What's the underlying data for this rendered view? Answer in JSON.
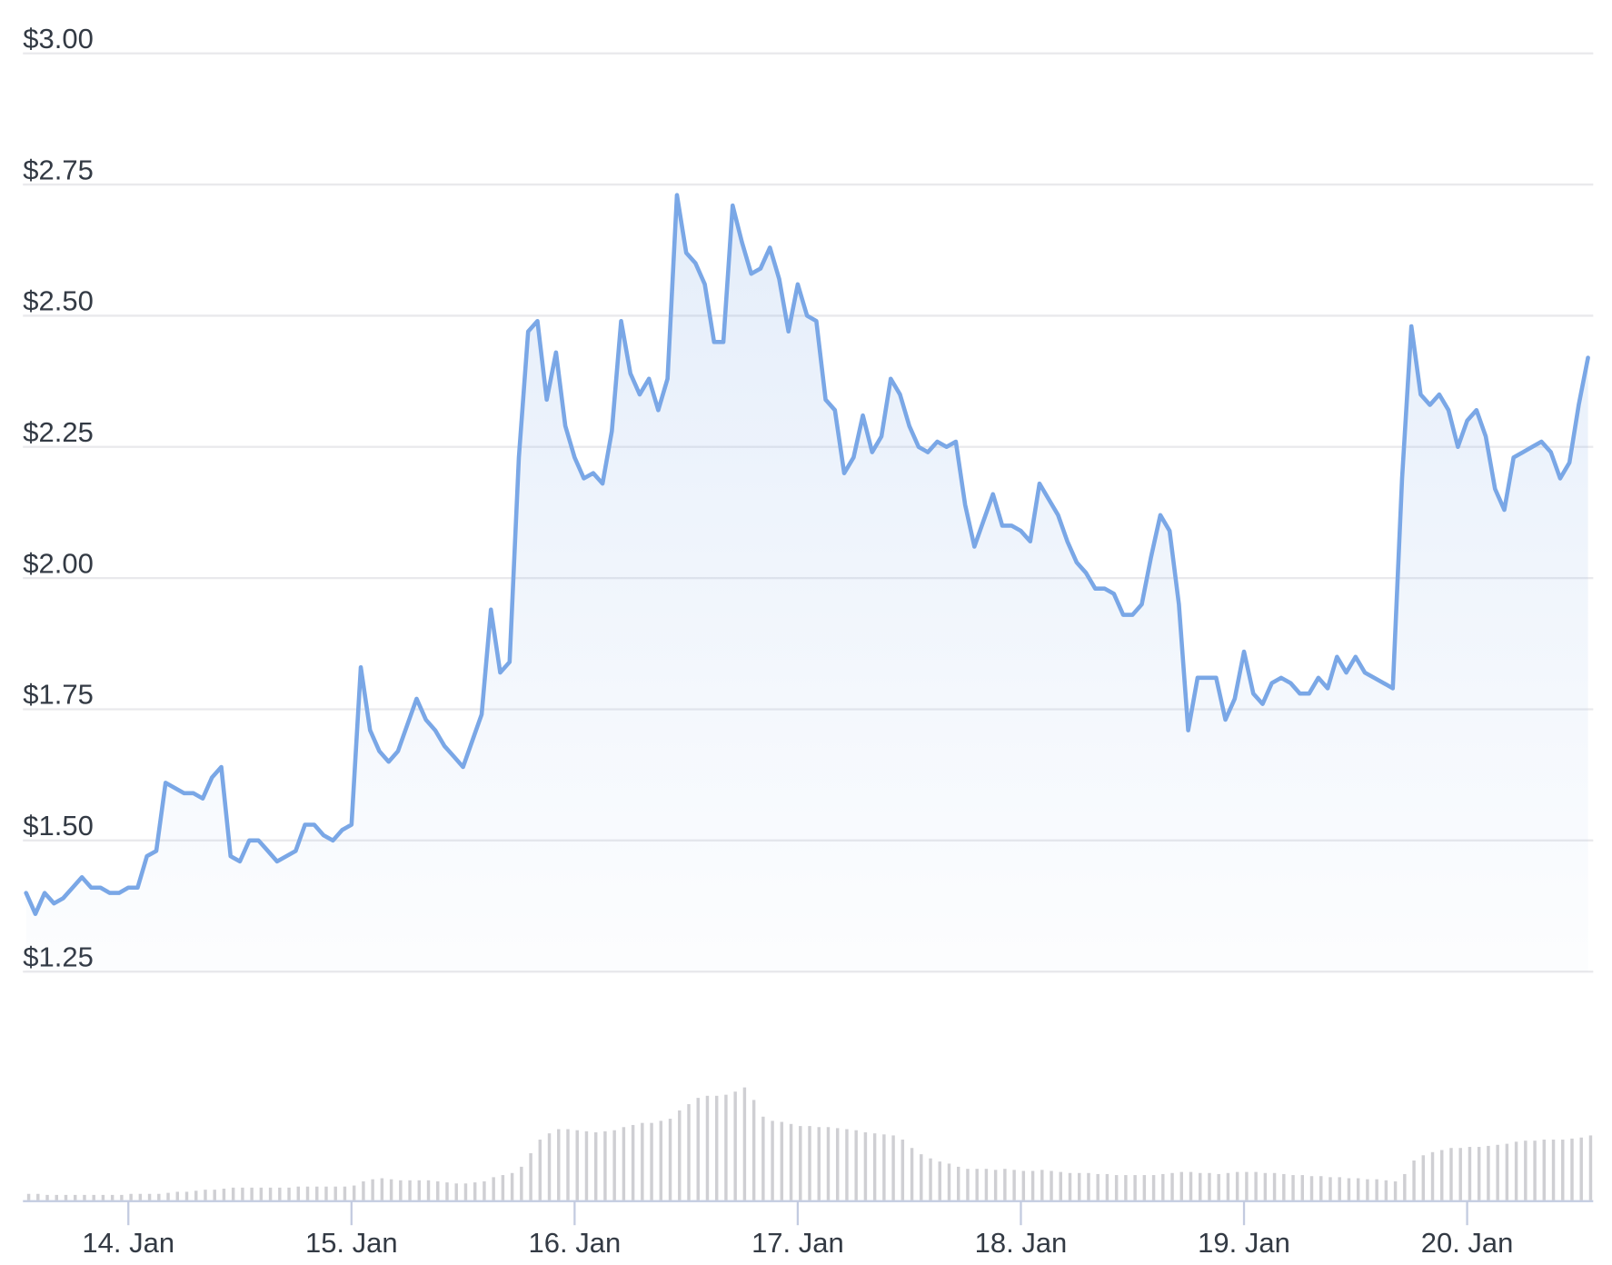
{
  "chart_data": {
    "type": "line",
    "color": "#7aa7e6",
    "ylim": [
      1.25,
      3.0
    ],
    "yticks": [
      {
        "value": 1.25,
        "label": "$1.25"
      },
      {
        "value": 1.5,
        "label": "$1.50"
      },
      {
        "value": 1.75,
        "label": "$1.75"
      },
      {
        "value": 2.0,
        "label": "$2.00"
      },
      {
        "value": 2.25,
        "label": "$2.25"
      },
      {
        "value": 2.5,
        "label": "$2.50"
      },
      {
        "value": 2.75,
        "label": "$2.75"
      },
      {
        "value": 3.0,
        "label": "$3.00"
      }
    ],
    "grid": true,
    "categories": [
      null,
      null,
      null,
      null,
      null,
      null,
      null,
      null,
      null,
      null,
      null,
      "14. Jan",
      null,
      null,
      null,
      null,
      null,
      null,
      null,
      null,
      null,
      null,
      null,
      null,
      null,
      null,
      null,
      null,
      null,
      null,
      null,
      null,
      null,
      null,
      null,
      "15. Jan",
      null,
      null,
      null,
      null,
      null,
      null,
      null,
      null,
      null,
      null,
      null,
      null,
      null,
      null,
      null,
      null,
      null,
      null,
      null,
      null,
      null,
      null,
      null,
      "16. Jan",
      null,
      null,
      null,
      null,
      null,
      null,
      null,
      null,
      null,
      null,
      null,
      null,
      null,
      null,
      null,
      null,
      null,
      null,
      null,
      null,
      null,
      null,
      null,
      "17. Jan",
      null,
      null,
      null,
      null,
      null,
      null,
      null,
      null,
      null,
      null,
      null,
      null,
      null,
      null,
      null,
      null,
      null,
      null,
      null,
      null,
      null,
      null,
      null,
      "18. Jan",
      null,
      null,
      null,
      null,
      null,
      null,
      null,
      null,
      null,
      null,
      null,
      null,
      null,
      null,
      null,
      null,
      null,
      null,
      null,
      null,
      null,
      null,
      null,
      "19. Jan",
      null,
      null,
      null,
      null,
      null,
      null,
      null,
      null,
      null,
      null,
      null,
      null,
      null,
      null,
      null,
      null,
      null,
      null,
      null,
      null,
      null,
      null,
      null,
      "20. Jan",
      null,
      null,
      null,
      null,
      null,
      null,
      null,
      null,
      null,
      null,
      null,
      null,
      null
    ],
    "values": [
      1.4,
      1.36,
      1.4,
      1.38,
      1.39,
      1.41,
      1.43,
      1.41,
      1.41,
      1.4,
      1.4,
      1.41,
      1.41,
      1.47,
      1.48,
      1.61,
      1.6,
      1.59,
      1.59,
      1.58,
      1.62,
      1.64,
      1.47,
      1.46,
      1.5,
      1.5,
      1.48,
      1.46,
      1.47,
      1.48,
      1.53,
      1.53,
      1.51,
      1.5,
      1.52,
      1.53,
      1.83,
      1.71,
      1.67,
      1.65,
      1.67,
      1.72,
      1.77,
      1.73,
      1.71,
      1.68,
      1.66,
      1.64,
      1.69,
      1.74,
      1.94,
      1.82,
      1.84,
      2.23,
      2.47,
      2.49,
      2.34,
      2.43,
      2.29,
      2.23,
      2.19,
      2.2,
      2.18,
      2.28,
      2.49,
      2.39,
      2.35,
      2.38,
      2.32,
      2.38,
      2.73,
      2.62,
      2.6,
      2.56,
      2.45,
      2.45,
      2.71,
      2.64,
      2.58,
      2.59,
      2.63,
      2.57,
      2.47,
      2.56,
      2.5,
      2.49,
      2.34,
      2.32,
      2.2,
      2.23,
      2.31,
      2.24,
      2.27,
      2.38,
      2.35,
      2.29,
      2.25,
      2.24,
      2.26,
      2.25,
      2.26,
      2.14,
      2.06,
      2.11,
      2.16,
      2.1,
      2.1,
      2.09,
      2.07,
      2.18,
      2.15,
      2.12,
      2.07,
      2.03,
      2.01,
      1.98,
      1.98,
      1.97,
      1.93,
      1.93,
      1.95,
      2.04,
      2.12,
      2.09,
      1.95,
      1.71,
      1.81,
      1.81,
      1.81,
      1.73,
      1.77,
      1.86,
      1.78,
      1.76,
      1.8,
      1.81,
      1.8,
      1.78,
      1.78,
      1.81,
      1.79,
      1.85,
      1.82,
      1.85,
      1.82,
      1.81,
      1.8,
      1.79,
      2.19,
      2.48,
      2.35,
      2.33,
      2.35,
      2.32,
      2.25,
      2.3,
      2.32,
      2.27,
      2.17,
      2.13,
      2.23,
      2.24,
      2.25,
      2.26,
      2.24,
      2.19,
      2.22,
      2.33,
      2.42
    ],
    "volume": {
      "color": "#cfcfd3",
      "vlim": [
        0,
        120
      ],
      "values": [
        6,
        6,
        5,
        5,
        5,
        5,
        5,
        5,
        5,
        5,
        5,
        6,
        6,
        6,
        6,
        7,
        8,
        8,
        9,
        10,
        10,
        11,
        12,
        12,
        12,
        12,
        12,
        12,
        12,
        13,
        13,
        13,
        13,
        13,
        13,
        14,
        18,
        20,
        21,
        20,
        19,
        19,
        19,
        19,
        18,
        17,
        16,
        16,
        17,
        18,
        22,
        24,
        26,
        32,
        45,
        58,
        64,
        68,
        68,
        67,
        66,
        65,
        66,
        67,
        70,
        72,
        74,
        74,
        76,
        78,
        86,
        92,
        98,
        100,
        100,
        101,
        104,
        108,
        96,
        80,
        76,
        75,
        73,
        71,
        71,
        70,
        70,
        69,
        68,
        67,
        65,
        64,
        63,
        62,
        58,
        50,
        44,
        40,
        37,
        35,
        32,
        30,
        30,
        30,
        29,
        30,
        29,
        28,
        28,
        29,
        28,
        27,
        26,
        26,
        26,
        25,
        25,
        24,
        24,
        24,
        24,
        24,
        25,
        26,
        27,
        27,
        26,
        26,
        25,
        26,
        27,
        27,
        27,
        26,
        26,
        25,
        24,
        24,
        23,
        23,
        22,
        22,
        21,
        21,
        20,
        20,
        19,
        18,
        25,
        38,
        43,
        46,
        48,
        50,
        50,
        51,
        51,
        52,
        53,
        54,
        56,
        57,
        57,
        58,
        58,
        58,
        59,
        60,
        62
      ]
    }
  }
}
